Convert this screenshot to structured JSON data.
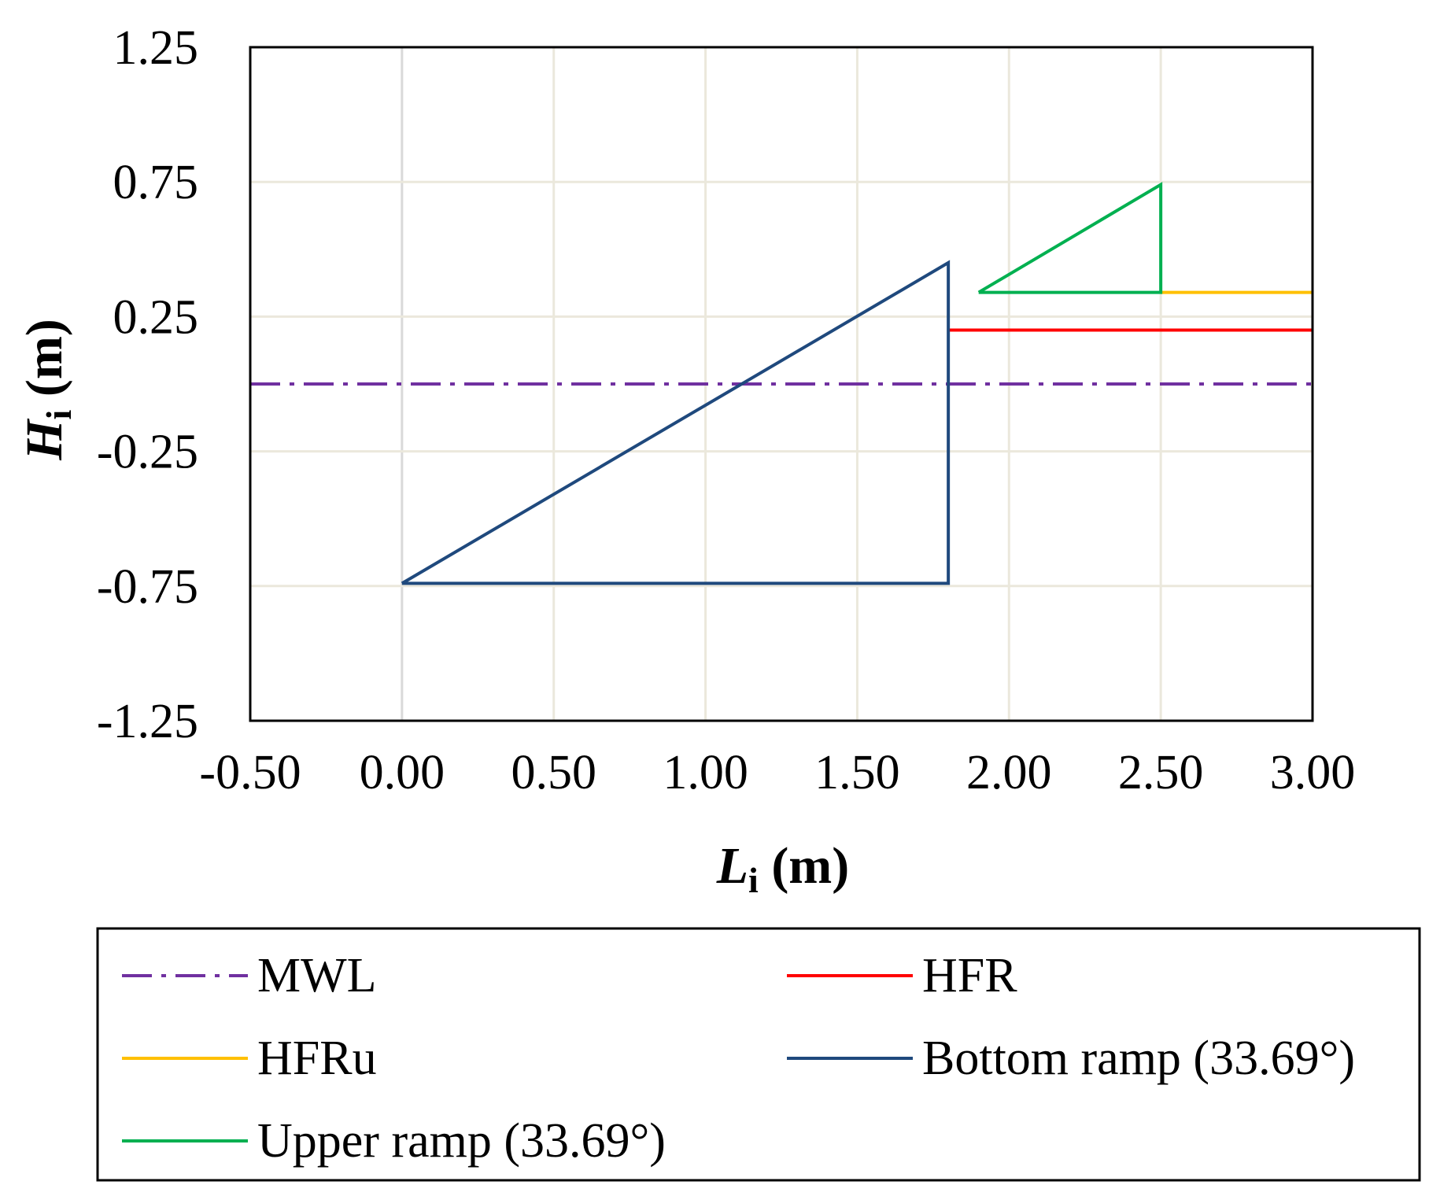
{
  "chart_data": {
    "type": "line",
    "xlabel": {
      "main": "L",
      "sub": "i",
      "unit": "(m)"
    },
    "ylabel": {
      "main": "H",
      "sub": "i",
      "unit": "(m)"
    },
    "xlim": [
      -0.5,
      3.0
    ],
    "ylim": [
      -1.25,
      1.25
    ],
    "x_ticks": [
      -0.5,
      0.0,
      0.5,
      1.0,
      1.5,
      2.0,
      2.5,
      3.0
    ],
    "x_tick_labels": [
      "-0.50",
      "0.00",
      "0.50",
      "1.00",
      "1.50",
      "2.00",
      "2.50",
      "3.00"
    ],
    "y_ticks": [
      1.25,
      0.75,
      0.25,
      -0.25,
      -0.75,
      -1.25
    ],
    "y_tick_labels": [
      "1.25",
      "0.75",
      "0.25",
      "-0.25",
      "-0.75",
      "-1.25"
    ],
    "grid": true,
    "legend_position": "bottom",
    "series": [
      {
        "name": "MWL",
        "color": "#7030a0",
        "style": "dashdot",
        "points": [
          [
            -0.5,
            0.0
          ],
          [
            3.0,
            0.0
          ]
        ]
      },
      {
        "name": "HFR",
        "color": "#ff0000",
        "style": "solid",
        "points": [
          [
            1.8,
            0.2
          ],
          [
            3.0,
            0.2
          ]
        ]
      },
      {
        "name": "HFRu",
        "color": "#ffc000",
        "style": "solid",
        "points": [
          [
            2.5,
            0.34
          ],
          [
            3.0,
            0.34
          ]
        ]
      },
      {
        "name": "Bottom ramp (33.69°)",
        "color": "#1f497d",
        "style": "solid",
        "points": [
          [
            0.0,
            -0.74
          ],
          [
            1.8,
            0.45
          ],
          [
            1.8,
            -0.74
          ],
          [
            0.0,
            -0.74
          ]
        ]
      },
      {
        "name": "Upper ramp (33.69°)",
        "color": "#00b050",
        "style": "solid",
        "points": [
          [
            1.9,
            0.34
          ],
          [
            2.5,
            0.74
          ],
          [
            2.5,
            0.34
          ],
          [
            1.9,
            0.34
          ]
        ]
      }
    ]
  }
}
